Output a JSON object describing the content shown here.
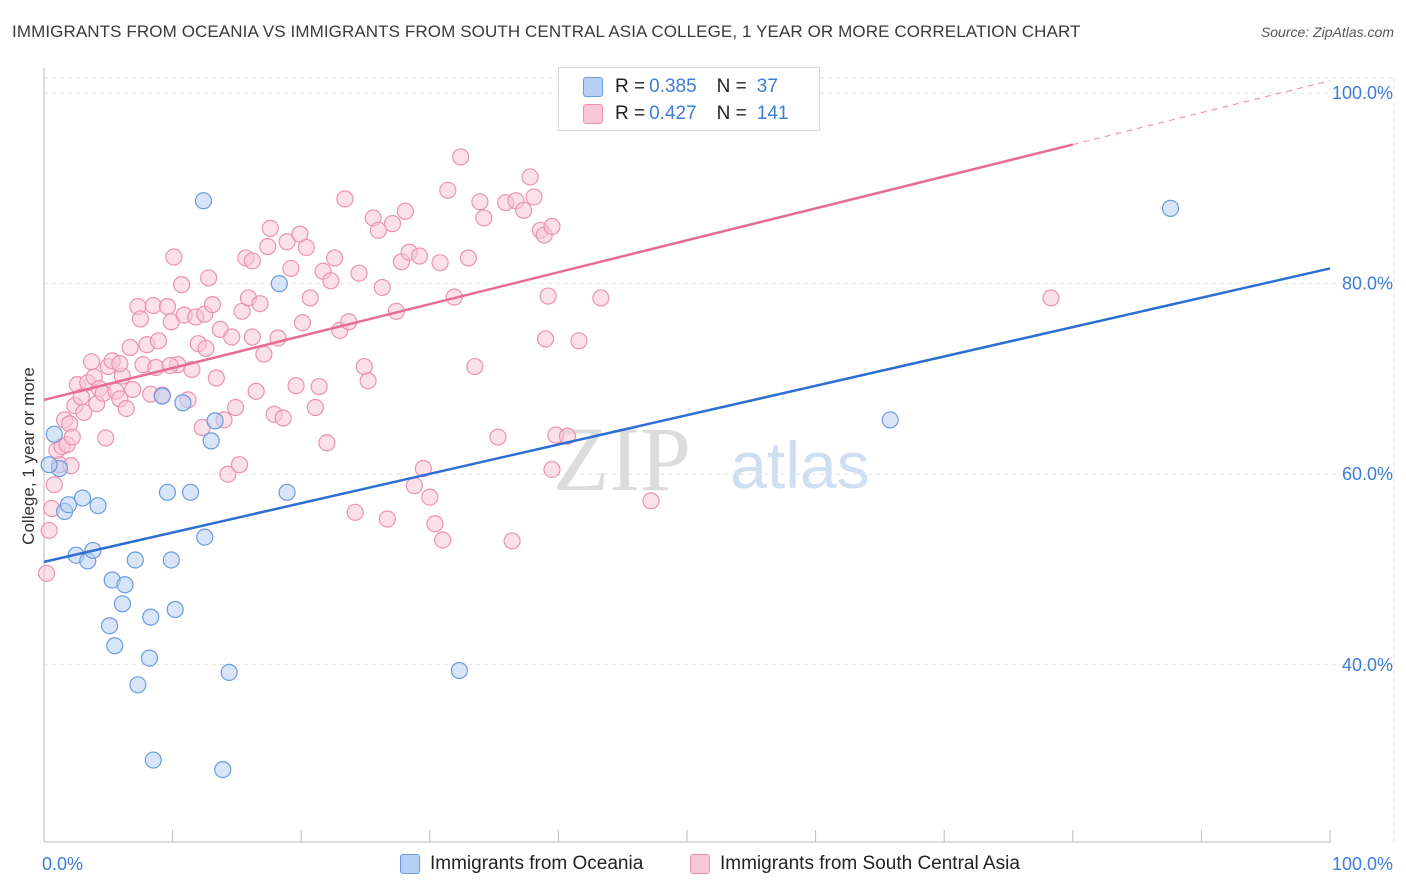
{
  "title": "IMMIGRANTS FROM OCEANIA VS IMMIGRANTS FROM SOUTH CENTRAL ASIA COLLEGE, 1 YEAR OR MORE CORRELATION CHART",
  "source": "Source: ZipAtlas.com",
  "watermark": {
    "zip": "ZIP",
    "atlas": "atlas"
  },
  "legend": {
    "rows": [
      {
        "r_label": "R = ",
        "r_value": "0.385",
        "n_label": "N = ",
        "n_value": "37"
      },
      {
        "r_label": "R = ",
        "r_value": "0.427",
        "n_label": "N = ",
        "n_value": "141"
      }
    ]
  },
  "bottom_legend": {
    "oceania": "Immigrants from Oceania",
    "sca": "Immigrants from South Central Asia"
  },
  "colors": {
    "blue_fill": "#b8d0f3",
    "blue_stroke": "#6a9be0",
    "blue_line": "#2d6fd0",
    "pink_fill": "#f8c6d6",
    "pink_stroke": "#ec92b0",
    "pink_line": "#e56d93",
    "axis_label": "#3b7dd8",
    "grid": "#e2e2e2"
  },
  "chart_data": {
    "type": "scatter",
    "title": "IMMIGRANTS FROM OCEANIA VS IMMIGRANTS FROM SOUTH CENTRAL ASIA COLLEGE, 1 YEAR OR MORE CORRELATION CHART",
    "xlabel": "",
    "ylabel": "College, 1 year or more",
    "xlim": [
      0,
      100
    ],
    "ylim": [
      21.4,
      101.9
    ],
    "x_tick_labels": [
      {
        "v": 0,
        "label": "0.0%"
      },
      {
        "v": 100,
        "label": "100.0%"
      }
    ],
    "y_tick_labels": [
      {
        "v": 100,
        "label": "100.0%"
      },
      {
        "v": 80,
        "label": "80.0%"
      },
      {
        "v": 60,
        "label": "60.0%"
      },
      {
        "v": 40,
        "label": "40.0%"
      }
    ],
    "series": [
      {
        "name": "Immigrants from Oceania",
        "color": "blue",
        "R": 0.385,
        "N": 37,
        "points": [
          [
            0.8,
            64.2
          ],
          [
            1.2,
            60.6
          ],
          [
            1.6,
            56.1
          ],
          [
            1.9,
            56.8
          ],
          [
            2.5,
            51.5
          ],
          [
            3.0,
            57.5
          ],
          [
            3.4,
            50.9
          ],
          [
            3.8,
            52.0
          ],
          [
            4.2,
            56.7
          ],
          [
            5.1,
            44.1
          ],
          [
            5.3,
            48.9
          ],
          [
            5.5,
            42.0
          ],
          [
            6.1,
            46.4
          ],
          [
            6.3,
            48.4
          ],
          [
            7.1,
            51.0
          ],
          [
            7.3,
            37.9
          ],
          [
            8.2,
            40.7
          ],
          [
            8.3,
            45.0
          ],
          [
            8.5,
            30.0
          ],
          [
            9.2,
            68.2
          ],
          [
            9.6,
            58.1
          ],
          [
            9.9,
            51.0
          ],
          [
            10.2,
            45.8
          ],
          [
            10.8,
            67.5
          ],
          [
            11.4,
            58.1
          ],
          [
            12.4,
            88.7
          ],
          [
            12.5,
            53.4
          ],
          [
            13.0,
            63.5
          ],
          [
            13.3,
            65.6
          ],
          [
            13.9,
            29.0
          ],
          [
            14.4,
            39.2
          ],
          [
            18.3,
            80.0
          ],
          [
            18.9,
            58.1
          ],
          [
            32.3,
            39.4
          ],
          [
            65.8,
            65.7
          ],
          [
            87.6,
            87.9
          ],
          [
            0.4,
            61.0
          ]
        ],
        "trend": {
          "x0": 0,
          "y0": 50.8,
          "x1": 100,
          "y1": 81.6
        }
      },
      {
        "name": "Immigrants from South Central Asia",
        "color": "pink",
        "R": 0.427,
        "N": 141,
        "points": [
          [
            0.2,
            49.6
          ],
          [
            0.4,
            54.1
          ],
          [
            0.6,
            56.4
          ],
          [
            0.8,
            58.9
          ],
          [
            1.0,
            62.5
          ],
          [
            1.2,
            61.0
          ],
          [
            1.4,
            62.9
          ],
          [
            1.6,
            65.7
          ],
          [
            1.8,
            63.1
          ],
          [
            2.0,
            65.3
          ],
          [
            2.2,
            63.9
          ],
          [
            2.4,
            67.2
          ],
          [
            2.6,
            69.4
          ],
          [
            2.9,
            68.1
          ],
          [
            3.1,
            66.5
          ],
          [
            3.4,
            69.6
          ],
          [
            3.7,
            71.8
          ],
          [
            3.9,
            70.2
          ],
          [
            4.1,
            67.4
          ],
          [
            4.3,
            69.0
          ],
          [
            4.6,
            68.5
          ],
          [
            4.8,
            63.8
          ],
          [
            5.0,
            71.3
          ],
          [
            5.3,
            71.9
          ],
          [
            5.6,
            68.7
          ],
          [
            5.9,
            67.9
          ],
          [
            6.1,
            70.3
          ],
          [
            6.4,
            66.9
          ],
          [
            6.7,
            73.3
          ],
          [
            6.9,
            68.9
          ],
          [
            7.3,
            77.6
          ],
          [
            7.5,
            76.3
          ],
          [
            7.7,
            71.5
          ],
          [
            8.0,
            73.6
          ],
          [
            8.3,
            68.4
          ],
          [
            8.5,
            77.7
          ],
          [
            8.7,
            71.2
          ],
          [
            8.9,
            74.0
          ],
          [
            9.2,
            68.3
          ],
          [
            9.6,
            77.6
          ],
          [
            9.9,
            76.0
          ],
          [
            10.1,
            82.8
          ],
          [
            10.4,
            71.5
          ],
          [
            10.7,
            79.9
          ],
          [
            10.9,
            76.7
          ],
          [
            11.2,
            67.8
          ],
          [
            11.5,
            71.0
          ],
          [
            11.8,
            76.5
          ],
          [
            12.0,
            73.7
          ],
          [
            12.3,
            64.9
          ],
          [
            12.5,
            76.8
          ],
          [
            12.8,
            80.6
          ],
          [
            13.1,
            77.8
          ],
          [
            13.4,
            70.1
          ],
          [
            13.7,
            75.2
          ],
          [
            14.0,
            65.7
          ],
          [
            14.3,
            60.0
          ],
          [
            14.6,
            74.4
          ],
          [
            14.9,
            67.0
          ],
          [
            15.2,
            61.0
          ],
          [
            15.4,
            77.1
          ],
          [
            15.7,
            82.7
          ],
          [
            15.9,
            78.5
          ],
          [
            16.2,
            74.4
          ],
          [
            16.5,
            68.7
          ],
          [
            16.8,
            77.9
          ],
          [
            17.1,
            72.6
          ],
          [
            17.4,
            83.9
          ],
          [
            17.6,
            85.8
          ],
          [
            17.9,
            66.3
          ],
          [
            18.2,
            74.3
          ],
          [
            18.6,
            65.9
          ],
          [
            18.9,
            84.4
          ],
          [
            19.2,
            81.6
          ],
          [
            19.6,
            69.3
          ],
          [
            19.9,
            85.2
          ],
          [
            20.1,
            75.9
          ],
          [
            20.4,
            83.8
          ],
          [
            20.7,
            78.5
          ],
          [
            21.1,
            67.0
          ],
          [
            21.4,
            69.2
          ],
          [
            21.7,
            81.3
          ],
          [
            22.0,
            63.3
          ],
          [
            22.3,
            80.3
          ],
          [
            22.6,
            82.7
          ],
          [
            23.0,
            75.1
          ],
          [
            23.4,
            88.9
          ],
          [
            23.7,
            76.0
          ],
          [
            24.2,
            56.0
          ],
          [
            24.5,
            81.1
          ],
          [
            24.9,
            71.3
          ],
          [
            25.2,
            69.8
          ],
          [
            25.6,
            86.9
          ],
          [
            26.0,
            85.6
          ],
          [
            26.3,
            79.6
          ],
          [
            26.7,
            55.3
          ],
          [
            27.1,
            86.3
          ],
          [
            27.4,
            77.1
          ],
          [
            27.8,
            82.3
          ],
          [
            28.1,
            87.6
          ],
          [
            28.4,
            83.3
          ],
          [
            28.8,
            58.8
          ],
          [
            29.2,
            82.9
          ],
          [
            29.5,
            60.6
          ],
          [
            30.0,
            57.6
          ],
          [
            30.4,
            54.8
          ],
          [
            30.8,
            82.2
          ],
          [
            31.0,
            53.1
          ],
          [
            31.4,
            89.8
          ],
          [
            31.9,
            78.6
          ],
          [
            32.4,
            93.3
          ],
          [
            33.0,
            82.7
          ],
          [
            33.5,
            71.3
          ],
          [
            33.9,
            88.6
          ],
          [
            34.2,
            86.9
          ],
          [
            35.3,
            63.9
          ],
          [
            35.9,
            88.5
          ],
          [
            36.4,
            53.0
          ],
          [
            36.7,
            88.7
          ],
          [
            37.3,
            87.7
          ],
          [
            37.8,
            91.2
          ],
          [
            38.1,
            89.1
          ],
          [
            38.6,
            85.6
          ],
          [
            38.9,
            85.1
          ],
          [
            39.2,
            78.7
          ],
          [
            39.8,
            64.1
          ],
          [
            39.5,
            86.0
          ],
          [
            40.7,
            64.0
          ],
          [
            39.5,
            60.5
          ],
          [
            39.0,
            74.2
          ],
          [
            41.6,
            74.0
          ],
          [
            43.3,
            78.5
          ],
          [
            47.2,
            57.2
          ],
          [
            78.3,
            78.5
          ],
          [
            5.9,
            71.6
          ],
          [
            9.8,
            71.4
          ],
          [
            12.6,
            73.2
          ],
          [
            16.2,
            82.4
          ],
          [
            2.1,
            60.9
          ]
        ],
        "trend": {
          "x0": 0,
          "y0": 67.8,
          "x1": 80,
          "y1": 94.6
        },
        "trend_dashed_extension": {
          "x0": 80,
          "y0": 94.6,
          "x1": 100,
          "y1": 101.3
        }
      }
    ]
  }
}
